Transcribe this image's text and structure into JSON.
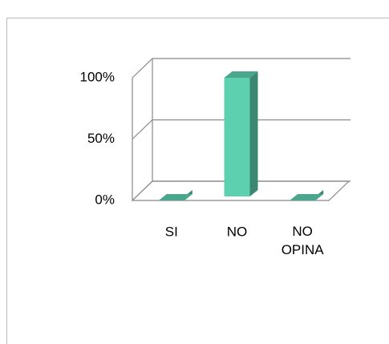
{
  "chart_data": {
    "type": "bar3d",
    "categories": [
      "SI",
      "NO",
      "NO OPINA"
    ],
    "values": [
      0,
      100,
      0
    ],
    "color": "#5dd0b0",
    "ylim": [
      0,
      100
    ],
    "yticks": [
      {
        "value": 0,
        "label": "0%"
      },
      {
        "value": 50,
        "label": "50%"
      },
      {
        "value": 100,
        "label": "100%"
      }
    ],
    "grid": true
  }
}
